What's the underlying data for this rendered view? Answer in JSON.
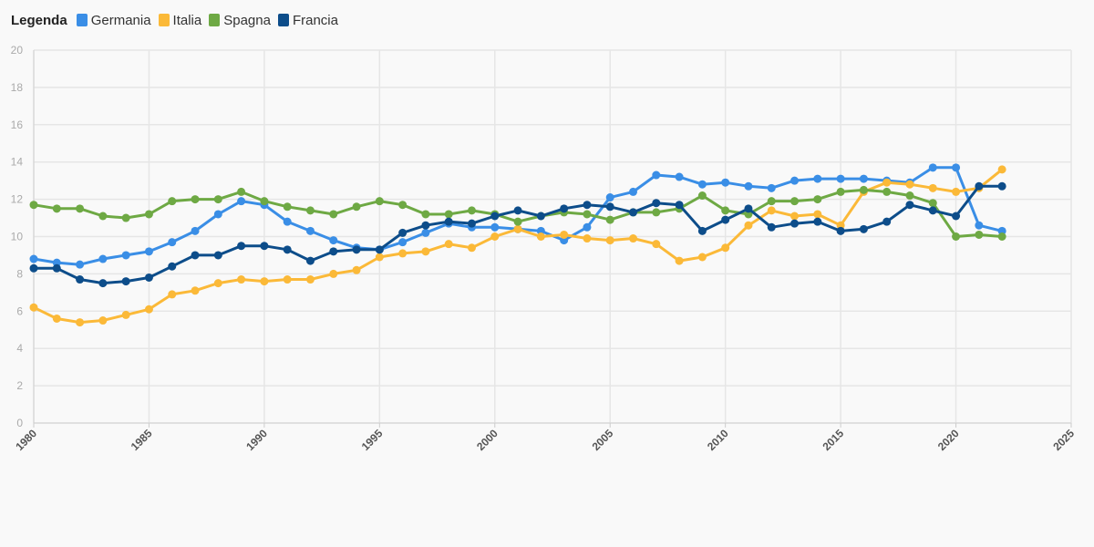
{
  "legend": {
    "title": "Legenda"
  },
  "chart_data": {
    "type": "line",
    "title": "",
    "xlabel": "",
    "ylabel": "",
    "xlim": [
      1980,
      2025
    ],
    "ylim": [
      0,
      20
    ],
    "x_ticks": [
      1980,
      1985,
      1990,
      1995,
      2000,
      2005,
      2010,
      2015,
      2020,
      2025
    ],
    "y_ticks": [
      0,
      2,
      4,
      6,
      8,
      10,
      12,
      14,
      16,
      18,
      20
    ],
    "grid": true,
    "legend_position": "top-left",
    "x": [
      1980,
      1981,
      1982,
      1983,
      1984,
      1985,
      1986,
      1987,
      1988,
      1989,
      1990,
      1991,
      1992,
      1993,
      1994,
      1995,
      1996,
      1997,
      1998,
      1999,
      2000,
      2001,
      2002,
      2003,
      2004,
      2005,
      2006,
      2007,
      2008,
      2009,
      2010,
      2011,
      2012,
      2013,
      2014,
      2015,
      2016,
      2017,
      2018,
      2019,
      2020,
      2021,
      2022
    ],
    "series": [
      {
        "name": "Germania",
        "color": "#3a8ee6",
        "values": [
          8.8,
          8.6,
          8.5,
          8.8,
          9.0,
          9.2,
          9.7,
          10.3,
          11.2,
          11.9,
          11.7,
          10.8,
          10.3,
          9.8,
          9.4,
          9.3,
          9.7,
          10.2,
          10.7,
          10.5,
          10.5,
          10.4,
          10.3,
          9.8,
          10.5,
          12.1,
          12.4,
          13.3,
          13.2,
          12.8,
          12.9,
          12.7,
          12.6,
          13.0,
          13.1,
          13.1,
          13.1,
          13.0,
          12.9,
          13.7,
          13.7,
          10.6,
          10.3
        ]
      },
      {
        "name": "Italia",
        "color": "#fbb938",
        "values": [
          6.2,
          5.6,
          5.4,
          5.5,
          5.8,
          6.1,
          6.9,
          7.1,
          7.5,
          7.7,
          7.6,
          7.7,
          7.7,
          8.0,
          8.2,
          8.9,
          9.1,
          9.2,
          9.6,
          9.4,
          10.0,
          10.4,
          10.0,
          10.1,
          9.9,
          9.8,
          9.9,
          9.6,
          8.7,
          8.9,
          9.4,
          10.6,
          11.4,
          11.1,
          11.2,
          10.6,
          12.4,
          12.9,
          12.8,
          12.6,
          12.4,
          12.6,
          13.6
        ]
      },
      {
        "name": "Spagna",
        "color": "#6ea944",
        "values": [
          11.7,
          11.5,
          11.5,
          11.1,
          11.0,
          11.2,
          11.9,
          12.0,
          12.0,
          12.4,
          11.9,
          11.6,
          11.4,
          11.2,
          11.6,
          11.9,
          11.7,
          11.2,
          11.2,
          11.4,
          11.2,
          10.8,
          11.1,
          11.3,
          11.2,
          10.9,
          11.3,
          11.3,
          11.5,
          12.2,
          11.4,
          11.2,
          11.9,
          11.9,
          12.0,
          12.4,
          12.5,
          12.4,
          12.2,
          11.8,
          10.0,
          10.1,
          10.0
        ]
      },
      {
        "name": "Francia",
        "color": "#0d4d8a",
        "values": [
          8.3,
          8.3,
          7.7,
          7.5,
          7.6,
          7.8,
          8.4,
          9.0,
          9.0,
          9.5,
          9.5,
          9.3,
          8.7,
          9.2,
          9.3,
          9.3,
          10.2,
          10.6,
          10.8,
          10.7,
          11.1,
          11.4,
          11.1,
          11.5,
          11.7,
          11.6,
          11.3,
          11.8,
          11.7,
          10.3,
          10.9,
          11.5,
          10.5,
          10.7,
          10.8,
          10.3,
          10.4,
          10.8,
          11.7,
          11.4,
          11.1,
          12.7,
          12.7
        ]
      }
    ]
  }
}
